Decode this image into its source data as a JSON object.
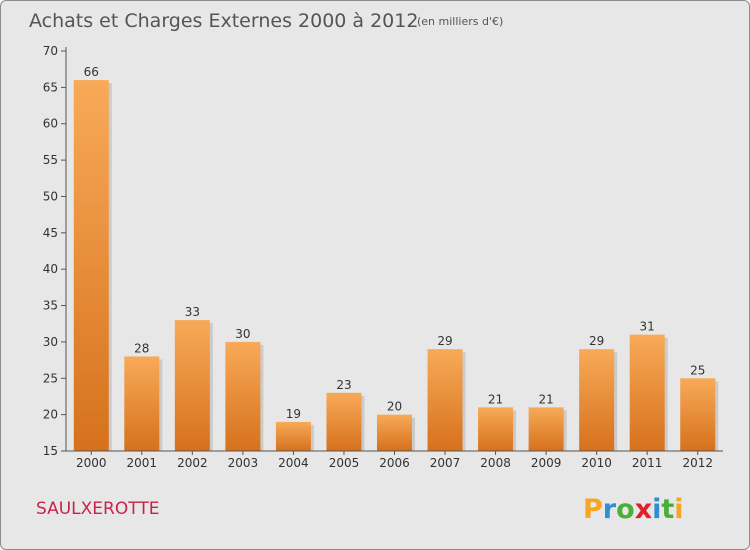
{
  "chart_data": {
    "type": "bar",
    "title": "Achats et Charges Externes 2000 à 2012",
    "subtitle": "(en milliers d'€)",
    "categories": [
      "2000",
      "2001",
      "2002",
      "2003",
      "2004",
      "2005",
      "2006",
      "2007",
      "2008",
      "2009",
      "2010",
      "2011",
      "2012"
    ],
    "values": [
      66,
      28,
      33,
      30,
      19,
      23,
      20,
      29,
      21,
      21,
      29,
      31,
      25
    ],
    "ylim": [
      15,
      70
    ],
    "yticks": [
      15,
      20,
      25,
      30,
      35,
      40,
      45,
      50,
      55,
      60,
      65,
      70
    ],
    "xlabel": "",
    "ylabel": "",
    "grid": false
  },
  "commune_name": "SAULXEROTTE",
  "logo": {
    "text": "Proxiti",
    "letters": [
      "P",
      "r",
      "o",
      "x",
      "i",
      "t",
      "i"
    ],
    "colors": [
      "#f5a623",
      "#2e8fd4",
      "#4cae3a",
      "#e2202a",
      "#2e8fd4",
      "#4cae3a",
      "#f5a623"
    ]
  },
  "colors": {
    "bar_light": "#f8aa58",
    "bar_dark": "#d6711c",
    "background": "#e7e7e7",
    "axis": "#555555"
  }
}
